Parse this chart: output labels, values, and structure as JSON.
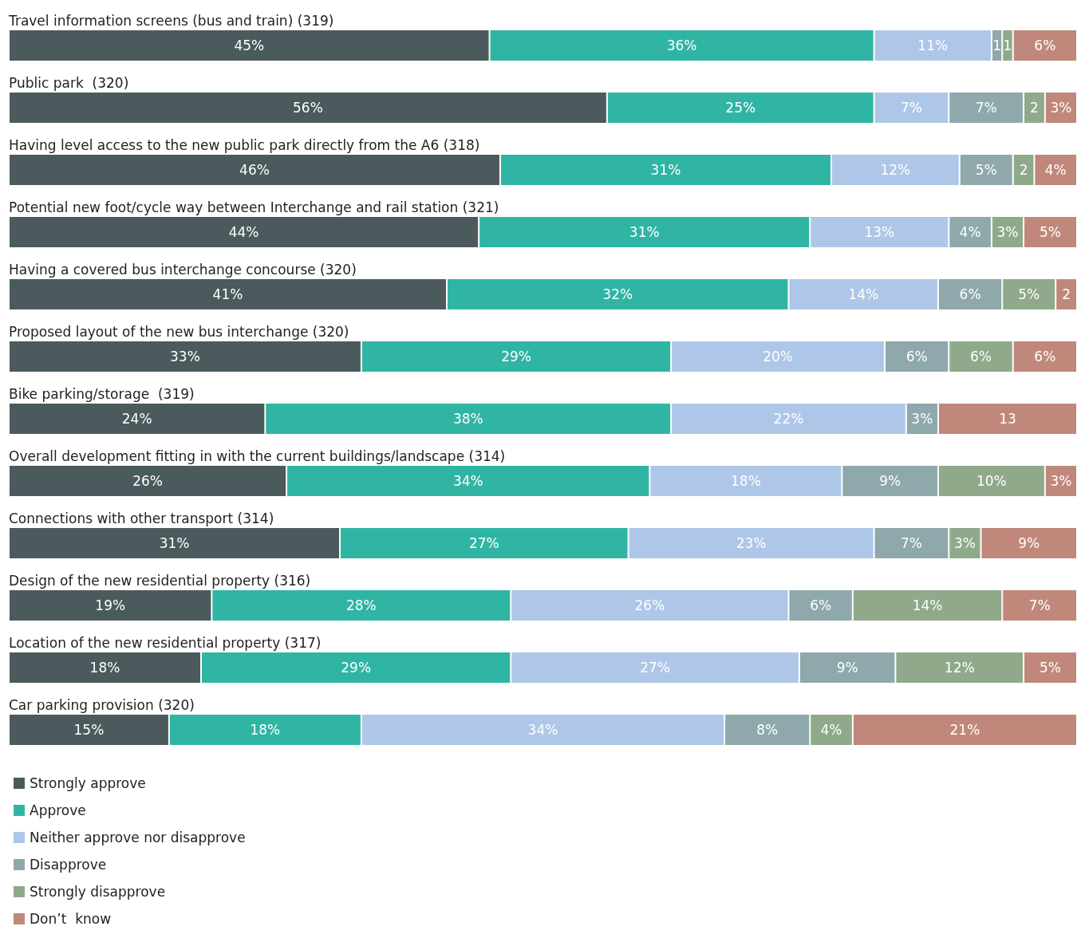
{
  "chart_data": {
    "type": "bar",
    "orientation": "horizontal",
    "stacked": true,
    "legend": "bottom left",
    "grid": false,
    "categories": [
      "Travel information screens (bus and train) (319)",
      "Public park  (320)",
      "Having level access to the new public park directly from the A6 (318)",
      "Potential new foot/cycle way between Interchange and rail station (321)",
      "Having a covered bus interchange concourse (320)",
      "Proposed layout of the new bus interchange (320)",
      "Bike parking/storage  (319)",
      "Overall development fitting in with the current buildings/landscape (314)",
      "Connections with other transport (314)",
      "Design of the new residential property (316)",
      "Location of the new residential property (317)",
      "Car parking provision (320)"
    ],
    "series": [
      {
        "name": "Strongly approve",
        "color": "#4b5a5c",
        "values": [
          45,
          56,
          46,
          44,
          41,
          33,
          24,
          26,
          31,
          19,
          18,
          15
        ],
        "value_labels": [
          "45%",
          "56%",
          "46%",
          "44%",
          "41%",
          "33%",
          "24%",
          "26%",
          "31%",
          "19%",
          "18%",
          "15%"
        ]
      },
      {
        "name": "Approve",
        "color": "#30b5a4",
        "values": [
          36,
          25,
          31,
          31,
          32,
          29,
          38,
          34,
          27,
          28,
          29,
          18
        ],
        "value_labels": [
          "36%",
          "25%",
          "31%",
          "31%",
          "32%",
          "29%",
          "38%",
          "34%",
          "27%",
          "28%",
          "29%",
          "18%"
        ]
      },
      {
        "name": "Neither approve nor disapprove",
        "color": "#aec7e8",
        "values": [
          11,
          7,
          12,
          13,
          14,
          20,
          22,
          18,
          23,
          26,
          27,
          34
        ],
        "value_labels": [
          "11%",
          "7%",
          "12%",
          "13%",
          "14%",
          "20%",
          "22%",
          "18%",
          "23%",
          "26%",
          "27%",
          "34%"
        ]
      },
      {
        "name": "Disapprove",
        "color": "#8ea8ab",
        "values": [
          1,
          7,
          5,
          4,
          6,
          6,
          3,
          9,
          7,
          6,
          9,
          8
        ],
        "value_labels": [
          "1",
          "7%",
          "5%",
          "4%",
          "6%",
          "6%",
          "3%",
          "9%",
          "7%",
          "6%",
          "9%",
          "8%"
        ]
      },
      {
        "name": "Strongly disapprove",
        "color": "#8fa98a",
        "values": [
          1,
          2,
          2,
          3,
          5,
          6,
          null,
          10,
          3,
          14,
          12,
          4
        ],
        "value_labels": [
          "1",
          "2",
          "2",
          "3%",
          "5%",
          "6%",
          null,
          "10%",
          "3%",
          "14%",
          "12%",
          "4%"
        ]
      },
      {
        "name": "Don’t  know",
        "color": "#c0887a",
        "values": [
          6,
          3,
          4,
          5,
          2,
          6,
          13,
          3,
          9,
          7,
          5,
          21
        ],
        "value_labels": [
          "6%",
          "3%",
          "4%",
          "5%",
          "2",
          "6%",
          "13",
          "3%",
          "9%",
          "7%",
          "5%",
          "21%"
        ]
      }
    ]
  }
}
